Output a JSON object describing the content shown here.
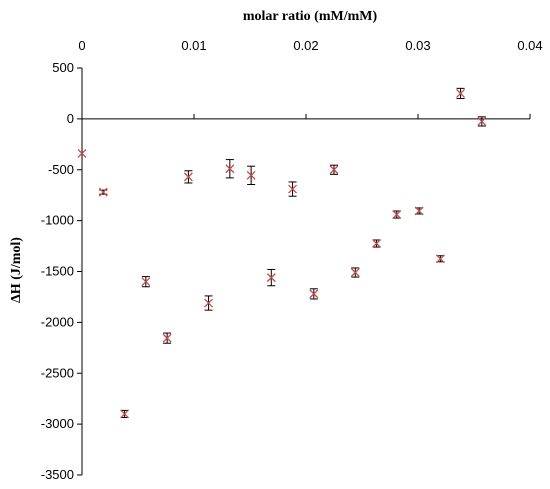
{
  "chart_data": {
    "type": "scatter",
    "title": "",
    "xlabel": "molar ratio (mM/mM)",
    "ylabel": "ΔH (J/mol)",
    "xlabel_position": "top",
    "xlim": [
      0,
      0.04
    ],
    "ylim": [
      -3500,
      500
    ],
    "x_ticks": [
      0,
      0.01,
      0.02,
      0.03,
      0.04
    ],
    "x_tick_labels": [
      "0",
      "0.01",
      "0.02",
      "0.03",
      "0.04"
    ],
    "y_ticks": [
      500,
      0,
      -500,
      -1000,
      -1500,
      -2000,
      -2500,
      -3000,
      -3500
    ],
    "y_tick_labels": [
      "500",
      "0",
      "-500",
      "-1000",
      "-1500",
      "-2000",
      "-2500",
      "-3000",
      "-3500"
    ],
    "grid": false,
    "legend": "none",
    "marker_color": "#c0504d",
    "series": [
      {
        "x": [
          0.0,
          0.0019,
          0.0038,
          0.0057,
          0.0076,
          0.0095,
          0.0113,
          0.0132,
          0.0151,
          0.0169,
          0.0188,
          0.0207,
          0.0225,
          0.0244,
          0.0263,
          0.0281,
          0.0301,
          0.032,
          0.0338,
          0.0357
        ],
        "y": [
          -340,
          -720,
          -2900,
          -1600,
          -2155,
          -570,
          -1810,
          -490,
          -555,
          -1560,
          -690,
          -1720,
          -500,
          -1510,
          -1225,
          -940,
          -905,
          -1375,
          250,
          -25
        ],
        "error": [
          0,
          20,
          35,
          50,
          50,
          60,
          70,
          90,
          90,
          80,
          70,
          50,
          45,
          45,
          35,
          35,
          30,
          30,
          50,
          45
        ]
      }
    ]
  }
}
